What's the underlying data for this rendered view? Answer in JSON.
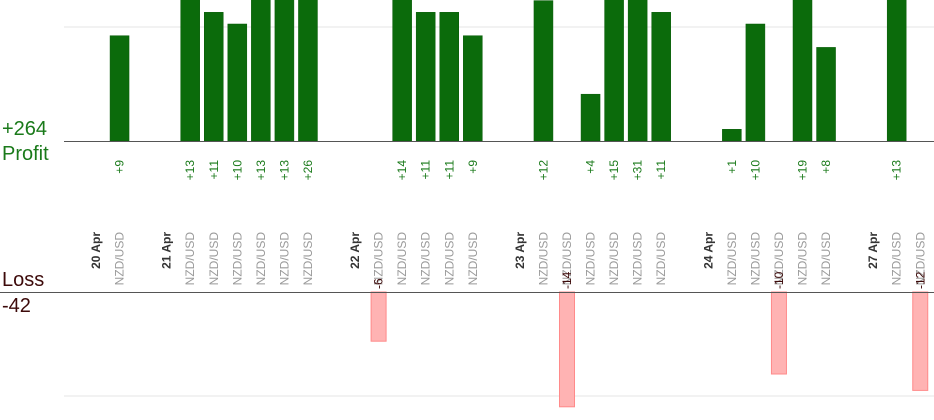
{
  "summary": {
    "profit_total": "+264",
    "profit_label": "Profit",
    "loss_label": "Loss",
    "loss_total": "-42"
  },
  "chart_data": {
    "type": "bar",
    "profit_ylim": [
      0,
      12
    ],
    "loss_ylim": [
      -11,
      0
    ],
    "columns": [
      {
        "label": "20 Apr",
        "kind": "date"
      },
      {
        "label": "NZD/USD",
        "kind": "trade",
        "value": 9
      },
      {
        "label": "",
        "kind": "gap"
      },
      {
        "label": "21 Apr",
        "kind": "date"
      },
      {
        "label": "NZD/USD",
        "kind": "trade",
        "value": 13
      },
      {
        "label": "NZD/USD",
        "kind": "trade",
        "value": 11
      },
      {
        "label": "NZD/USD",
        "kind": "trade",
        "value": 10
      },
      {
        "label": "NZD/USD",
        "kind": "trade",
        "value": 13
      },
      {
        "label": "NZD/USD",
        "kind": "trade",
        "value": 13
      },
      {
        "label": "NZD/USD",
        "kind": "trade",
        "value": 26
      },
      {
        "label": "",
        "kind": "gap"
      },
      {
        "label": "22 Apr",
        "kind": "date"
      },
      {
        "label": "NZD/USD",
        "kind": "trade",
        "value": -6
      },
      {
        "label": "NZD/USD",
        "kind": "trade",
        "value": 14
      },
      {
        "label": "NZD/USD",
        "kind": "trade",
        "value": 11
      },
      {
        "label": "NZD/USD",
        "kind": "trade",
        "value": 11
      },
      {
        "label": "NZD/USD",
        "kind": "trade",
        "value": 9
      },
      {
        "label": "",
        "kind": "gap"
      },
      {
        "label": "23 Apr",
        "kind": "date"
      },
      {
        "label": "NZD/USD",
        "kind": "trade",
        "value": 12
      },
      {
        "label": "NZD/USD",
        "kind": "trade",
        "value": -14
      },
      {
        "label": "NZD/USD",
        "kind": "trade",
        "value": 4
      },
      {
        "label": "NZD/USD",
        "kind": "trade",
        "value": 15
      },
      {
        "label": "NZD/USD",
        "kind": "trade",
        "value": 31
      },
      {
        "label": "NZD/USD",
        "kind": "trade",
        "value": 11
      },
      {
        "label": "",
        "kind": "gap"
      },
      {
        "label": "24 Apr",
        "kind": "date"
      },
      {
        "label": "NZD/USD",
        "kind": "trade",
        "value": 1
      },
      {
        "label": "NZD/USD",
        "kind": "trade",
        "value": 10
      },
      {
        "label": "NZD/USD",
        "kind": "trade",
        "value": -10
      },
      {
        "label": "NZD/USD",
        "kind": "trade",
        "value": 19
      },
      {
        "label": "NZD/USD",
        "kind": "trade",
        "value": 8
      },
      {
        "label": "",
        "kind": "gap"
      },
      {
        "label": "27 Apr",
        "kind": "date"
      },
      {
        "label": "NZD/USD",
        "kind": "trade",
        "value": 13
      },
      {
        "label": "NZD/USD",
        "kind": "trade",
        "value": -12
      }
    ]
  },
  "colors": {
    "profit_bar": "#0b6b0b",
    "profit_bar_light": "#0f8a0f",
    "profit_text": "#1a7a1a",
    "loss_bar": "#ffb3b3",
    "loss_bar_border": "#ff8a8a",
    "loss_text": "#3d0a0a",
    "axis": "#555555",
    "grid": "#e6e6e6"
  }
}
